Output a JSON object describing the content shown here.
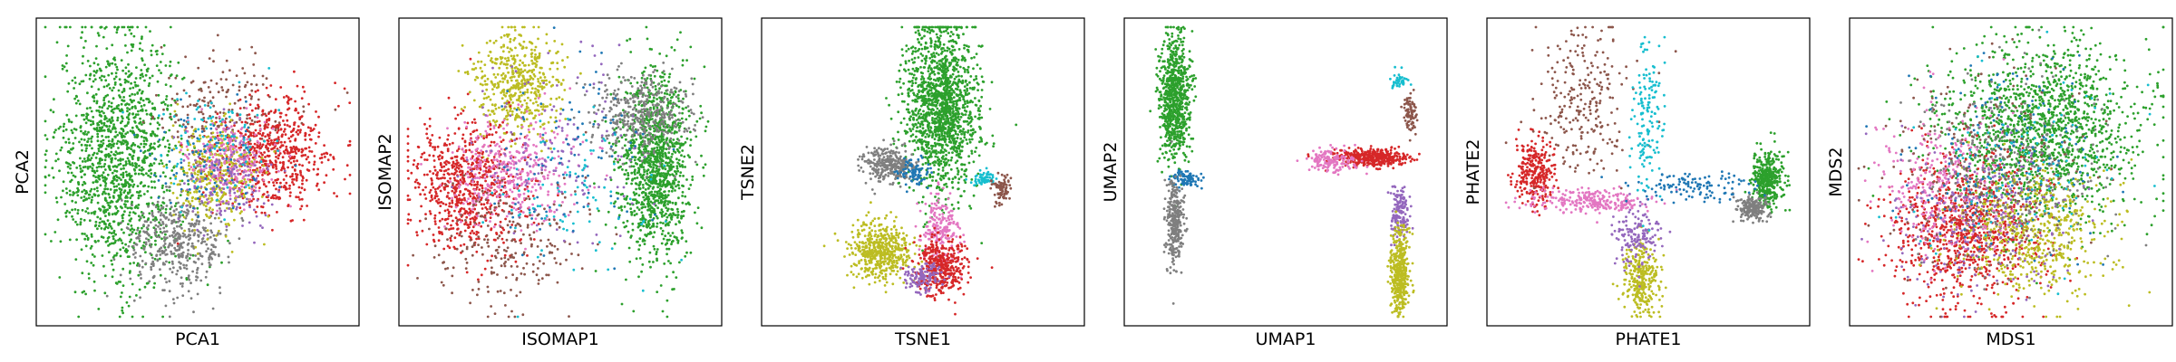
{
  "palette": {
    "green": "#2ca02c",
    "red": "#d62728",
    "gray": "#7f7f7f",
    "olive": "#bcbd22",
    "pink": "#e377c2",
    "purple": "#9467bd",
    "brown": "#8c564b",
    "blue": "#1f77b4",
    "cyan": "#17becf",
    "orange": "#ff7f0e"
  },
  "chart_data": [
    {
      "type": "scatter",
      "xlabel": "PCA1",
      "ylabel": "PCA2",
      "xlim": [
        -1,
        1
      ],
      "ylim": [
        -1,
        1
      ],
      "ticks": "none",
      "grid": false,
      "legend": "none",
      "clusters": [
        {
          "color": "green",
          "cx": -0.52,
          "cy": 0.1,
          "sx": 0.2,
          "sy": 0.42,
          "n": 1400
        },
        {
          "color": "gray",
          "cx": -0.12,
          "cy": -0.48,
          "sx": 0.16,
          "sy": 0.16,
          "n": 420
        },
        {
          "color": "brown",
          "cx": 0.15,
          "cy": 0.42,
          "sx": 0.22,
          "sy": 0.18,
          "n": 200
        },
        {
          "color": "red",
          "cx": 0.5,
          "cy": 0.12,
          "sx": 0.2,
          "sy": 0.2,
          "n": 600
        },
        {
          "color": "olive",
          "cx": 0.1,
          "cy": 0.0,
          "sx": 0.14,
          "sy": 0.16,
          "n": 380
        },
        {
          "color": "pink",
          "cx": 0.22,
          "cy": 0.08,
          "sx": 0.14,
          "sy": 0.14,
          "n": 220
        },
        {
          "color": "purple",
          "cx": 0.2,
          "cy": -0.05,
          "sx": 0.16,
          "sy": 0.16,
          "n": 160
        },
        {
          "color": "cyan",
          "cx": 0.12,
          "cy": 0.2,
          "sx": 0.18,
          "sy": 0.2,
          "n": 90
        },
        {
          "color": "blue",
          "cx": 0.05,
          "cy": 0.08,
          "sx": 0.18,
          "sy": 0.2,
          "n": 90
        }
      ]
    },
    {
      "type": "scatter",
      "xlabel": "ISOMAP1",
      "ylabel": "ISOMAP2",
      "xlim": [
        -1,
        1
      ],
      "ylim": [
        -1,
        1
      ],
      "ticks": "none",
      "grid": false,
      "legend": "none",
      "clusters": [
        {
          "color": "green",
          "cx": 0.62,
          "cy": 0.05,
          "sx": 0.12,
          "sy": 0.32,
          "n": 1200
        },
        {
          "color": "gray",
          "cx": 0.52,
          "cy": 0.4,
          "sx": 0.16,
          "sy": 0.14,
          "n": 400
        },
        {
          "color": "olive",
          "cx": -0.28,
          "cy": 0.62,
          "sx": 0.14,
          "sy": 0.18,
          "n": 500
        },
        {
          "color": "red",
          "cx": -0.62,
          "cy": -0.1,
          "sx": 0.18,
          "sy": 0.22,
          "n": 700
        },
        {
          "color": "pink",
          "cx": -0.3,
          "cy": 0.0,
          "sx": 0.2,
          "sy": 0.18,
          "n": 380
        },
        {
          "color": "brown",
          "cx": -0.35,
          "cy": -0.5,
          "sx": 0.25,
          "sy": 0.22,
          "n": 230
        },
        {
          "color": "purple",
          "cx": -0.05,
          "cy": 0.1,
          "sx": 0.3,
          "sy": 0.3,
          "n": 150
        },
        {
          "color": "blue",
          "cx": 0.1,
          "cy": 0.1,
          "sx": 0.3,
          "sy": 0.3,
          "n": 100
        },
        {
          "color": "cyan",
          "cx": 0.1,
          "cy": -0.15,
          "sx": 0.3,
          "sy": 0.3,
          "n": 90
        }
      ]
    },
    {
      "type": "scatter",
      "xlabel": "TSNE1",
      "ylabel": "TSNE2",
      "xlim": [
        -1,
        1
      ],
      "ylim": [
        -1,
        1
      ],
      "ticks": "none",
      "grid": false,
      "legend": "none",
      "clusters": [
        {
          "color": "green",
          "cx": 0.12,
          "cy": 0.45,
          "sx": 0.12,
          "sy": 0.3,
          "n": 1500
        },
        {
          "color": "gray",
          "cx": -0.22,
          "cy": 0.05,
          "sx": 0.08,
          "sy": 0.06,
          "n": 300
        },
        {
          "color": "blue",
          "cx": -0.05,
          "cy": 0.0,
          "sx": 0.05,
          "sy": 0.05,
          "n": 80
        },
        {
          "color": "cyan",
          "cx": 0.4,
          "cy": -0.05,
          "sx": 0.04,
          "sy": 0.03,
          "n": 60
        },
        {
          "color": "brown",
          "cx": 0.52,
          "cy": -0.12,
          "sx": 0.03,
          "sy": 0.05,
          "n": 80
        },
        {
          "color": "olive",
          "cx": -0.28,
          "cy": -0.55,
          "sx": 0.1,
          "sy": 0.1,
          "n": 500
        },
        {
          "color": "pink",
          "cx": 0.12,
          "cy": -0.4,
          "sx": 0.06,
          "sy": 0.12,
          "n": 200
        },
        {
          "color": "red",
          "cx": 0.12,
          "cy": -0.65,
          "sx": 0.08,
          "sy": 0.1,
          "n": 400
        },
        {
          "color": "purple",
          "cx": 0.0,
          "cy": -0.72,
          "sx": 0.06,
          "sy": 0.06,
          "n": 120
        }
      ]
    },
    {
      "type": "scatter",
      "xlabel": "UMAP1",
      "ylabel": "UMAP2",
      "xlim": [
        -1,
        1
      ],
      "ylim": [
        -1,
        1
      ],
      "ticks": "none",
      "grid": false,
      "legend": "none",
      "clusters": [
        {
          "color": "green",
          "cx": -0.73,
          "cy": 0.5,
          "sx": 0.05,
          "sy": 0.22,
          "n": 800
        },
        {
          "color": "blue",
          "cx": -0.66,
          "cy": -0.05,
          "sx": 0.05,
          "sy": 0.03,
          "n": 90
        },
        {
          "color": "gray",
          "cx": -0.73,
          "cy": -0.35,
          "sx": 0.03,
          "sy": 0.15,
          "n": 300
        },
        {
          "color": "red",
          "cx": 0.58,
          "cy": 0.1,
          "sx": 0.12,
          "sy": 0.03,
          "n": 400
        },
        {
          "color": "pink",
          "cx": 0.3,
          "cy": 0.08,
          "sx": 0.08,
          "sy": 0.04,
          "n": 150
        },
        {
          "color": "purple",
          "cx": 0.75,
          "cy": -0.28,
          "sx": 0.03,
          "sy": 0.1,
          "n": 150
        },
        {
          "color": "olive",
          "cx": 0.75,
          "cy": -0.7,
          "sx": 0.03,
          "sy": 0.14,
          "n": 400
        },
        {
          "color": "brown",
          "cx": 0.82,
          "cy": 0.4,
          "sx": 0.02,
          "sy": 0.08,
          "n": 80
        },
        {
          "color": "cyan",
          "cx": 0.75,
          "cy": 0.63,
          "sx": 0.03,
          "sy": 0.03,
          "n": 40
        }
      ]
    },
    {
      "type": "scatter",
      "xlabel": "PHATE1",
      "ylabel": "PHATE2",
      "xlim": [
        -1,
        1
      ],
      "ylim": [
        -1,
        1
      ],
      "ticks": "none",
      "grid": false,
      "legend": "none",
      "clusters": [
        {
          "color": "green",
          "cx": 0.78,
          "cy": -0.05,
          "sx": 0.05,
          "sy": 0.1,
          "n": 400
        },
        {
          "color": "gray",
          "cx": 0.68,
          "cy": -0.25,
          "sx": 0.05,
          "sy": 0.04,
          "n": 200
        },
        {
          "color": "red",
          "cx": -0.75,
          "cy": 0.0,
          "sx": 0.06,
          "sy": 0.12,
          "n": 300
        },
        {
          "color": "pink",
          "cx": -0.35,
          "cy": -0.2,
          "sx": 0.2,
          "sy": 0.04,
          "n": 250
        },
        {
          "color": "olive",
          "cx": -0.05,
          "cy": -0.75,
          "sx": 0.06,
          "sy": 0.12,
          "n": 300
        },
        {
          "color": "purple",
          "cx": -0.08,
          "cy": -0.45,
          "sx": 0.08,
          "sy": 0.1,
          "n": 150
        },
        {
          "color": "brown",
          "cx": -0.4,
          "cy": 0.5,
          "sx": 0.15,
          "sy": 0.25,
          "n": 250
        },
        {
          "color": "cyan",
          "cx": 0.0,
          "cy": 0.35,
          "sx": 0.05,
          "sy": 0.25,
          "n": 150
        },
        {
          "color": "blue",
          "cx": 0.3,
          "cy": -0.1,
          "sx": 0.2,
          "sy": 0.05,
          "n": 120
        }
      ]
    },
    {
      "type": "scatter",
      "xlabel": "MDS1",
      "ylabel": "MDS2",
      "xlim": [
        -1,
        1
      ],
      "ylim": [
        -1,
        1
      ],
      "ticks": "none",
      "grid": false,
      "legend": "none",
      "clusters": [
        {
          "color": "green",
          "cx": 0.2,
          "cy": 0.3,
          "sx": 0.32,
          "sy": 0.3,
          "n": 1500
        },
        {
          "color": "red",
          "cx": -0.3,
          "cy": -0.4,
          "sx": 0.25,
          "sy": 0.25,
          "n": 900
        },
        {
          "color": "olive",
          "cx": 0.15,
          "cy": -0.4,
          "sx": 0.25,
          "sy": 0.22,
          "n": 600
        },
        {
          "color": "pink",
          "cx": -0.45,
          "cy": -0.1,
          "sx": 0.2,
          "sy": 0.25,
          "n": 300
        },
        {
          "color": "purple",
          "cx": -0.2,
          "cy": -0.3,
          "sx": 0.3,
          "sy": 0.3,
          "n": 250
        },
        {
          "color": "gray",
          "cx": 0.0,
          "cy": 0.0,
          "sx": 0.35,
          "sy": 0.35,
          "n": 250
        },
        {
          "color": "brown",
          "cx": -0.2,
          "cy": 0.0,
          "sx": 0.35,
          "sy": 0.35,
          "n": 200
        },
        {
          "color": "blue",
          "cx": 0.0,
          "cy": 0.1,
          "sx": 0.35,
          "sy": 0.35,
          "n": 150
        },
        {
          "color": "cyan",
          "cx": 0.1,
          "cy": 0.0,
          "sx": 0.35,
          "sy": 0.35,
          "n": 100
        }
      ]
    }
  ]
}
